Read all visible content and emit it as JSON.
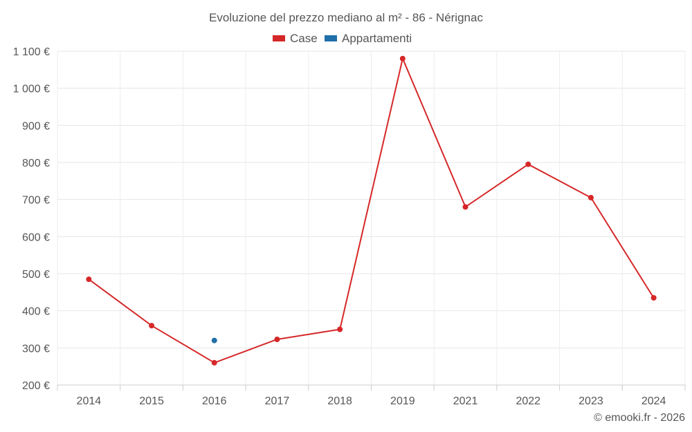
{
  "chart_data": {
    "type": "line",
    "title": "Evoluzione del prezzo mediano al m² - 86 - Nérignac",
    "categories": [
      "2014",
      "2015",
      "2016",
      "2017",
      "2018",
      "2019",
      "2021",
      "2022",
      "2023",
      "2024"
    ],
    "series": [
      {
        "name": "Case",
        "color": "#d62728",
        "values": [
          485,
          360,
          260,
          323,
          350,
          1080,
          680,
          795,
          705,
          435
        ]
      },
      {
        "name": "Appartamenti",
        "color": "#1f6fa8",
        "values": [
          null,
          null,
          320,
          null,
          null,
          null,
          null,
          null,
          null,
          null
        ]
      }
    ],
    "ylim": [
      200,
      1100
    ],
    "yticks": [
      200,
      300,
      400,
      500,
      600,
      700,
      800,
      900,
      1000,
      1100
    ],
    "ytick_labels": [
      "200 €",
      "300 €",
      "400 €",
      "500 €",
      "600 €",
      "700 €",
      "800 €",
      "900 €",
      "1 000 €",
      "1 100 €"
    ],
    "grid": true,
    "legend_position": "top-center",
    "credit": "© emooki.fr - 2026"
  }
}
